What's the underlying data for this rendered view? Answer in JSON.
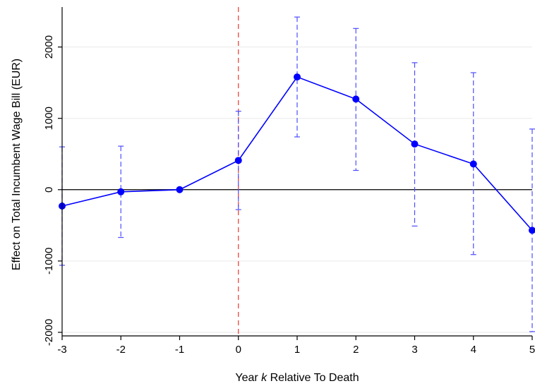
{
  "chart_data": {
    "type": "line",
    "title": "",
    "xlabel_prefix": "Year ",
    "xlabel_var": "k",
    "xlabel_suffix": " Relative To Death",
    "ylabel": "Effect on Total Incumbent Wage Bill (EUR)",
    "x_ticks": [
      -3,
      -2,
      -1,
      0,
      1,
      2,
      3,
      4,
      5
    ],
    "y_ticks": [
      -2000,
      -1000,
      0,
      1000,
      2000
    ],
    "xlim": [
      -3,
      5
    ],
    "ylim": [
      -2050,
      2560
    ],
    "grid": true,
    "reference_line_x": 0,
    "reference_line_y": 0,
    "series": [
      {
        "x": [
          -3,
          -2,
          -1,
          0,
          1,
          2,
          3,
          4,
          5
        ],
        "y": [
          -230,
          -30,
          0,
          410,
          1580,
          1270,
          640,
          360,
          -570
        ],
        "ci_low": [
          -1060,
          -670,
          0,
          -280,
          740,
          270,
          -510,
          -910,
          -1990
        ],
        "ci_high": [
          600,
          610,
          0,
          1100,
          2420,
          2260,
          1780,
          1640,
          850
        ]
      }
    ],
    "colors": {
      "series": "#0000ff",
      "ci": "#4d4dff",
      "reference_vertical": "#e8473f",
      "zero_line": "#000000",
      "grid": "#eaeaea",
      "axis": "#000000"
    }
  }
}
